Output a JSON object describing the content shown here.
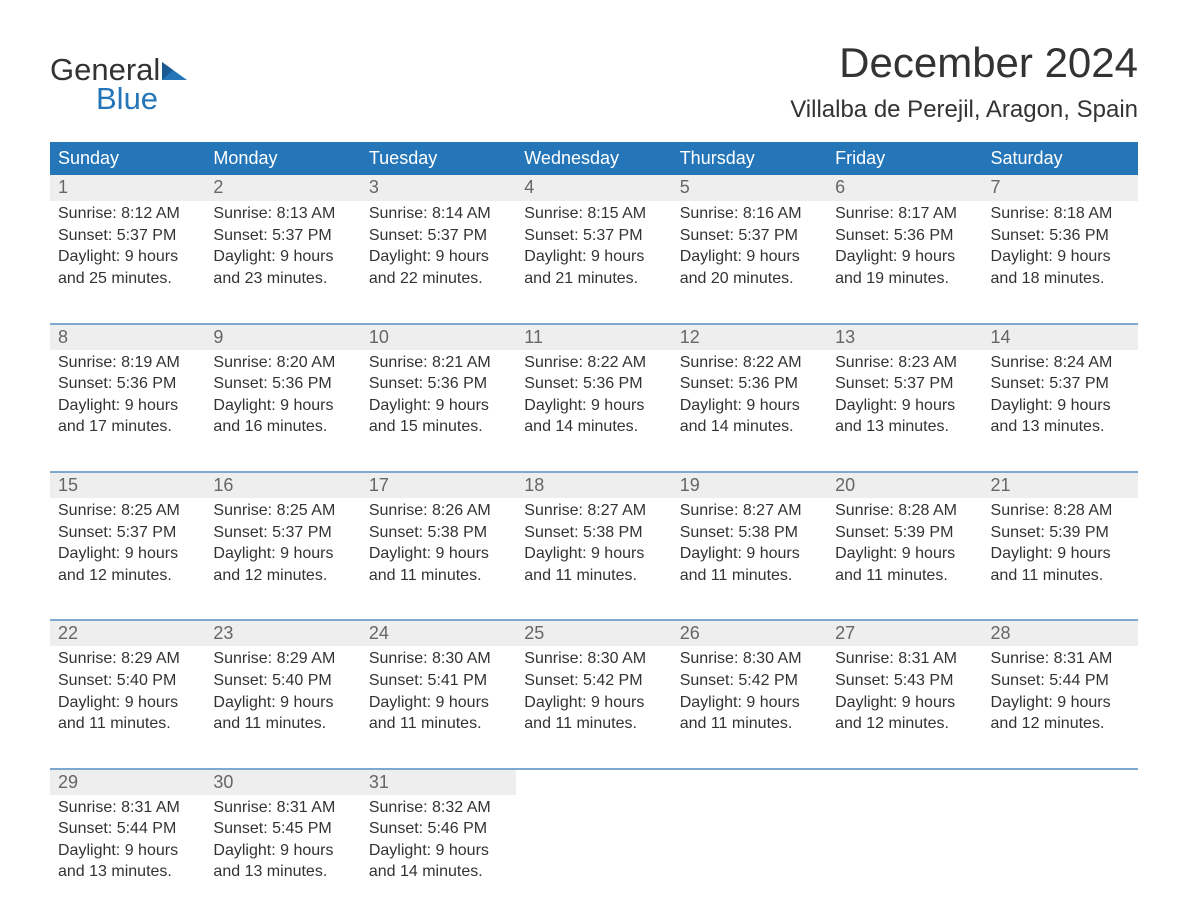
{
  "logo": {
    "text_top": "General",
    "text_bottom": "Blue",
    "tri_color": "#2576b9",
    "top_color": "#333333",
    "bottom_color": "#2576b9"
  },
  "title": "December 2024",
  "location": "Villalba de Perejil, Aragon, Spain",
  "styling": {
    "header_bg": "#2576b9",
    "header_text": "#ffffff",
    "daynum_bg": "#eeeeee",
    "daynum_text": "#666666",
    "body_text": "#333333",
    "week_border": "#7fa8cc",
    "page_bg": "#ffffff",
    "font": "Segoe UI",
    "title_fontsize_pt": 32,
    "location_fontsize_pt": 18,
    "th_fontsize_pt": 14,
    "daynum_fontsize_pt": 14,
    "cell_fontsize_pt": 12
  },
  "day_headers": [
    "Sunday",
    "Monday",
    "Tuesday",
    "Wednesday",
    "Thursday",
    "Friday",
    "Saturday"
  ],
  "days": {
    "1": {
      "sunrise": "8:12 AM",
      "sunset": "5:37 PM",
      "daylight_l1": "Daylight: 9 hours",
      "daylight_l2": "and 25 minutes."
    },
    "2": {
      "sunrise": "8:13 AM",
      "sunset": "5:37 PM",
      "daylight_l1": "Daylight: 9 hours",
      "daylight_l2": "and 23 minutes."
    },
    "3": {
      "sunrise": "8:14 AM",
      "sunset": "5:37 PM",
      "daylight_l1": "Daylight: 9 hours",
      "daylight_l2": "and 22 minutes."
    },
    "4": {
      "sunrise": "8:15 AM",
      "sunset": "5:37 PM",
      "daylight_l1": "Daylight: 9 hours",
      "daylight_l2": "and 21 minutes."
    },
    "5": {
      "sunrise": "8:16 AM",
      "sunset": "5:37 PM",
      "daylight_l1": "Daylight: 9 hours",
      "daylight_l2": "and 20 minutes."
    },
    "6": {
      "sunrise": "8:17 AM",
      "sunset": "5:36 PM",
      "daylight_l1": "Daylight: 9 hours",
      "daylight_l2": "and 19 minutes."
    },
    "7": {
      "sunrise": "8:18 AM",
      "sunset": "5:36 PM",
      "daylight_l1": "Daylight: 9 hours",
      "daylight_l2": "and 18 minutes."
    },
    "8": {
      "sunrise": "8:19 AM",
      "sunset": "5:36 PM",
      "daylight_l1": "Daylight: 9 hours",
      "daylight_l2": "and 17 minutes."
    },
    "9": {
      "sunrise": "8:20 AM",
      "sunset": "5:36 PM",
      "daylight_l1": "Daylight: 9 hours",
      "daylight_l2": "and 16 minutes."
    },
    "10": {
      "sunrise": "8:21 AM",
      "sunset": "5:36 PM",
      "daylight_l1": "Daylight: 9 hours",
      "daylight_l2": "and 15 minutes."
    },
    "11": {
      "sunrise": "8:22 AM",
      "sunset": "5:36 PM",
      "daylight_l1": "Daylight: 9 hours",
      "daylight_l2": "and 14 minutes."
    },
    "12": {
      "sunrise": "8:22 AM",
      "sunset": "5:36 PM",
      "daylight_l1": "Daylight: 9 hours",
      "daylight_l2": "and 14 minutes."
    },
    "13": {
      "sunrise": "8:23 AM",
      "sunset": "5:37 PM",
      "daylight_l1": "Daylight: 9 hours",
      "daylight_l2": "and 13 minutes."
    },
    "14": {
      "sunrise": "8:24 AM",
      "sunset": "5:37 PM",
      "daylight_l1": "Daylight: 9 hours",
      "daylight_l2": "and 13 minutes."
    },
    "15": {
      "sunrise": "8:25 AM",
      "sunset": "5:37 PM",
      "daylight_l1": "Daylight: 9 hours",
      "daylight_l2": "and 12 minutes."
    },
    "16": {
      "sunrise": "8:25 AM",
      "sunset": "5:37 PM",
      "daylight_l1": "Daylight: 9 hours",
      "daylight_l2": "and 12 minutes."
    },
    "17": {
      "sunrise": "8:26 AM",
      "sunset": "5:38 PM",
      "daylight_l1": "Daylight: 9 hours",
      "daylight_l2": "and 11 minutes."
    },
    "18": {
      "sunrise": "8:27 AM",
      "sunset": "5:38 PM",
      "daylight_l1": "Daylight: 9 hours",
      "daylight_l2": "and 11 minutes."
    },
    "19": {
      "sunrise": "8:27 AM",
      "sunset": "5:38 PM",
      "daylight_l1": "Daylight: 9 hours",
      "daylight_l2": "and 11 minutes."
    },
    "20": {
      "sunrise": "8:28 AM",
      "sunset": "5:39 PM",
      "daylight_l1": "Daylight: 9 hours",
      "daylight_l2": "and 11 minutes."
    },
    "21": {
      "sunrise": "8:28 AM",
      "sunset": "5:39 PM",
      "daylight_l1": "Daylight: 9 hours",
      "daylight_l2": "and 11 minutes."
    },
    "22": {
      "sunrise": "8:29 AM",
      "sunset": "5:40 PM",
      "daylight_l1": "Daylight: 9 hours",
      "daylight_l2": "and 11 minutes."
    },
    "23": {
      "sunrise": "8:29 AM",
      "sunset": "5:40 PM",
      "daylight_l1": "Daylight: 9 hours",
      "daylight_l2": "and 11 minutes."
    },
    "24": {
      "sunrise": "8:30 AM",
      "sunset": "5:41 PM",
      "daylight_l1": "Daylight: 9 hours",
      "daylight_l2": "and 11 minutes."
    },
    "25": {
      "sunrise": "8:30 AM",
      "sunset": "5:42 PM",
      "daylight_l1": "Daylight: 9 hours",
      "daylight_l2": "and 11 minutes."
    },
    "26": {
      "sunrise": "8:30 AM",
      "sunset": "5:42 PM",
      "daylight_l1": "Daylight: 9 hours",
      "daylight_l2": "and 11 minutes."
    },
    "27": {
      "sunrise": "8:31 AM",
      "sunset": "5:43 PM",
      "daylight_l1": "Daylight: 9 hours",
      "daylight_l2": "and 12 minutes."
    },
    "28": {
      "sunrise": "8:31 AM",
      "sunset": "5:44 PM",
      "daylight_l1": "Daylight: 9 hours",
      "daylight_l2": "and 12 minutes."
    },
    "29": {
      "sunrise": "8:31 AM",
      "sunset": "5:44 PM",
      "daylight_l1": "Daylight: 9 hours",
      "daylight_l2": "and 13 minutes."
    },
    "30": {
      "sunrise": "8:31 AM",
      "sunset": "5:45 PM",
      "daylight_l1": "Daylight: 9 hours",
      "daylight_l2": "and 13 minutes."
    },
    "31": {
      "sunrise": "8:32 AM",
      "sunset": "5:46 PM",
      "daylight_l1": "Daylight: 9 hours",
      "daylight_l2": "and 14 minutes."
    }
  },
  "labels": {
    "sunrise_prefix": "Sunrise: ",
    "sunset_prefix": "Sunset: "
  },
  "weeks": [
    [
      1,
      2,
      3,
      4,
      5,
      6,
      7
    ],
    [
      8,
      9,
      10,
      11,
      12,
      13,
      14
    ],
    [
      15,
      16,
      17,
      18,
      19,
      20,
      21
    ],
    [
      22,
      23,
      24,
      25,
      26,
      27,
      28
    ],
    [
      29,
      30,
      31,
      null,
      null,
      null,
      null
    ]
  ]
}
